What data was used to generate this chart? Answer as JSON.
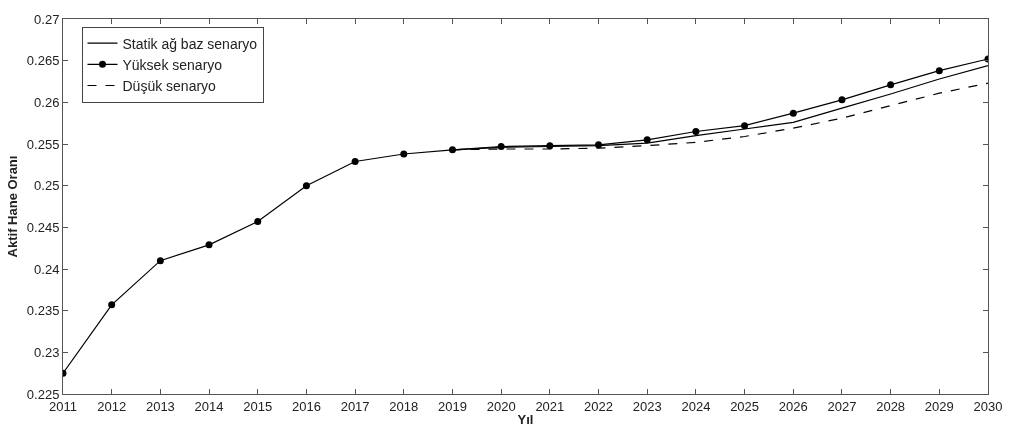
{
  "chart_data": {
    "type": "line",
    "xlabel": "Yıl",
    "ylabel": "Aktif Hane Oranı",
    "xlim": [
      2011,
      2030
    ],
    "xticks": [
      2011,
      2012,
      2013,
      2014,
      2015,
      2016,
      2017,
      2018,
      2019,
      2020,
      2021,
      2022,
      2023,
      2024,
      2025,
      2026,
      2027,
      2028,
      2029,
      2030
    ],
    "ylim": [
      0.225,
      0.27
    ],
    "yticks": [
      0.225,
      0.23,
      0.235,
      0.24,
      0.245,
      0.25,
      0.255,
      0.26,
      0.265,
      0.27
    ],
    "legend": "top left",
    "series": [
      {
        "name": "Statik ağ baz senaryo",
        "color": "#000000",
        "line_style": "solid",
        "marker": "none",
        "x": [
          2019,
          2020,
          2021,
          2022,
          2023,
          2024,
          2025,
          2026,
          2027,
          2028,
          2029,
          2030
        ],
        "values": [
          0.2543,
          0.2546,
          0.2547,
          0.2548,
          0.2551,
          0.256,
          0.2568,
          0.2576,
          0.2593,
          0.261,
          0.2628,
          0.2644
        ]
      },
      {
        "name": "Yüksek senaryo",
        "color": "#000000",
        "line_style": "solid",
        "marker": "circle",
        "x": [
          2011,
          2012,
          2013,
          2014,
          2015,
          2016,
          2017,
          2018,
          2019,
          2020,
          2021,
          2022,
          2023,
          2024,
          2025,
          2026,
          2027,
          2028,
          2029,
          2030
        ],
        "values": [
          0.2275,
          0.2357,
          0.241,
          0.2429,
          0.2457,
          0.25,
          0.2529,
          0.2538,
          0.2543,
          0.2547,
          0.2548,
          0.2549,
          0.2555,
          0.2565,
          0.2572,
          0.2587,
          0.2603,
          0.2621,
          0.2638,
          0.2652
        ]
      },
      {
        "name": "Düşük senaryo",
        "color": "#000000",
        "line_style": "dashed",
        "marker": "none",
        "x": [
          2019,
          2020,
          2021,
          2022,
          2023,
          2024,
          2025,
          2026,
          2027,
          2028,
          2029,
          2030
        ],
        "values": [
          0.2543,
          0.2544,
          0.2544,
          0.2545,
          0.2548,
          0.2552,
          0.2559,
          0.2569,
          0.2581,
          0.2596,
          0.2611,
          0.2623
        ]
      }
    ]
  }
}
